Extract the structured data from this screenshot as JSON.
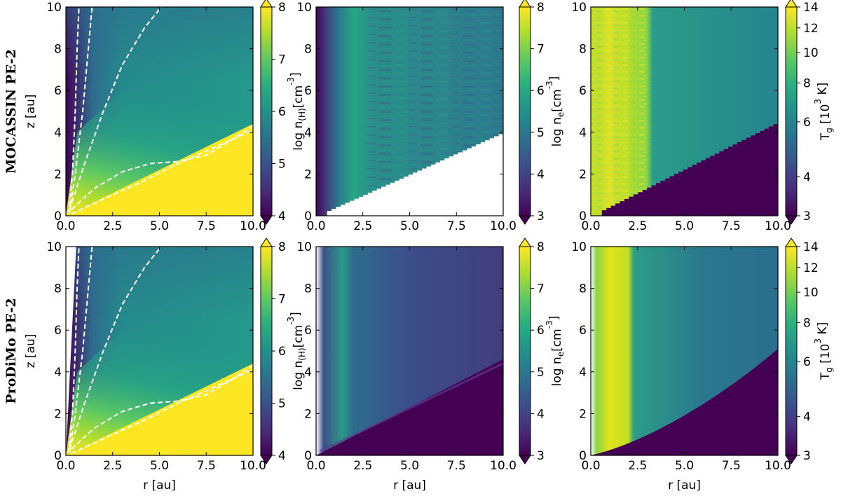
{
  "figure": {
    "rows": [
      {
        "title": "MOCASSIN PE-2"
      },
      {
        "title": "ProDiMo PE-2"
      }
    ],
    "xlabel": "r [au]",
    "ylabel": "z [au]",
    "x_ticks": [
      "0.0",
      "2.5",
      "5.0",
      "7.5",
      "10.0"
    ],
    "y_ticks": [
      "0",
      "2",
      "4",
      "6",
      "8",
      "10"
    ],
    "colorbars": [
      {
        "quantity": "log n(H)",
        "label_main": "log n",
        "label_sub": "(H)",
        "label_unit": "[cm",
        "label_sup": "-3",
        "label_close": "]",
        "ticks": [
          "4",
          "5",
          "6",
          "7",
          "8"
        ],
        "min": 4,
        "max": 8
      },
      {
        "quantity": "log ne",
        "label_main": "log n",
        "label_sub": "e",
        "label_unit": "[cm",
        "label_sup": "-3",
        "label_close": "]",
        "ticks": [
          "3",
          "4",
          "5",
          "6",
          "7",
          "8"
        ],
        "min": 3,
        "max": 8
      },
      {
        "quantity": "Tg",
        "label_main": "T",
        "label_sub": "g",
        "label_unit": " [10",
        "label_sup": "3",
        "label_close": " K]",
        "ticks": [
          "3",
          "4",
          "6",
          "8",
          "10",
          "12",
          "14"
        ],
        "min": 3,
        "max": 14
      }
    ]
  },
  "chart_data": {
    "type": "heatmap",
    "layout": "2 rows x 3 columns",
    "colormap": "viridis",
    "x_range": [
      0,
      10
    ],
    "y_range": [
      0,
      10
    ],
    "xlabel": "r [au]",
    "ylabel": "z [au]",
    "panels": [
      {
        "row": "MOCASSIN PE-2",
        "quantity": "log n(H) [cm^-3]",
        "range": [
          4,
          8
        ],
        "contours": "white dashed",
        "disk_surface_z_at_r10": 4.4
      },
      {
        "row": "MOCASSIN PE-2",
        "quantity": "log ne [cm^-3]",
        "range": [
          3,
          8
        ],
        "white_region": "below disk surface"
      },
      {
        "row": "MOCASSIN PE-2",
        "quantity": "Tg [10^3 K]",
        "range": [
          3,
          14
        ],
        "hot_region_r_max": 3.0
      },
      {
        "row": "ProDiMo PE-2",
        "quantity": "log n(H) [cm^-3]",
        "range": [
          4,
          8
        ],
        "contours": "white dashed",
        "disk_surface_z_at_r10": 4.4
      },
      {
        "row": "ProDiMo PE-2",
        "quantity": "log ne [cm^-3]",
        "range": [
          3,
          8
        ]
      },
      {
        "row": "ProDiMo PE-2",
        "quantity": "Tg [10^3 K]",
        "range": [
          3,
          14
        ],
        "hot_region_r_max": 2.2
      }
    ]
  }
}
